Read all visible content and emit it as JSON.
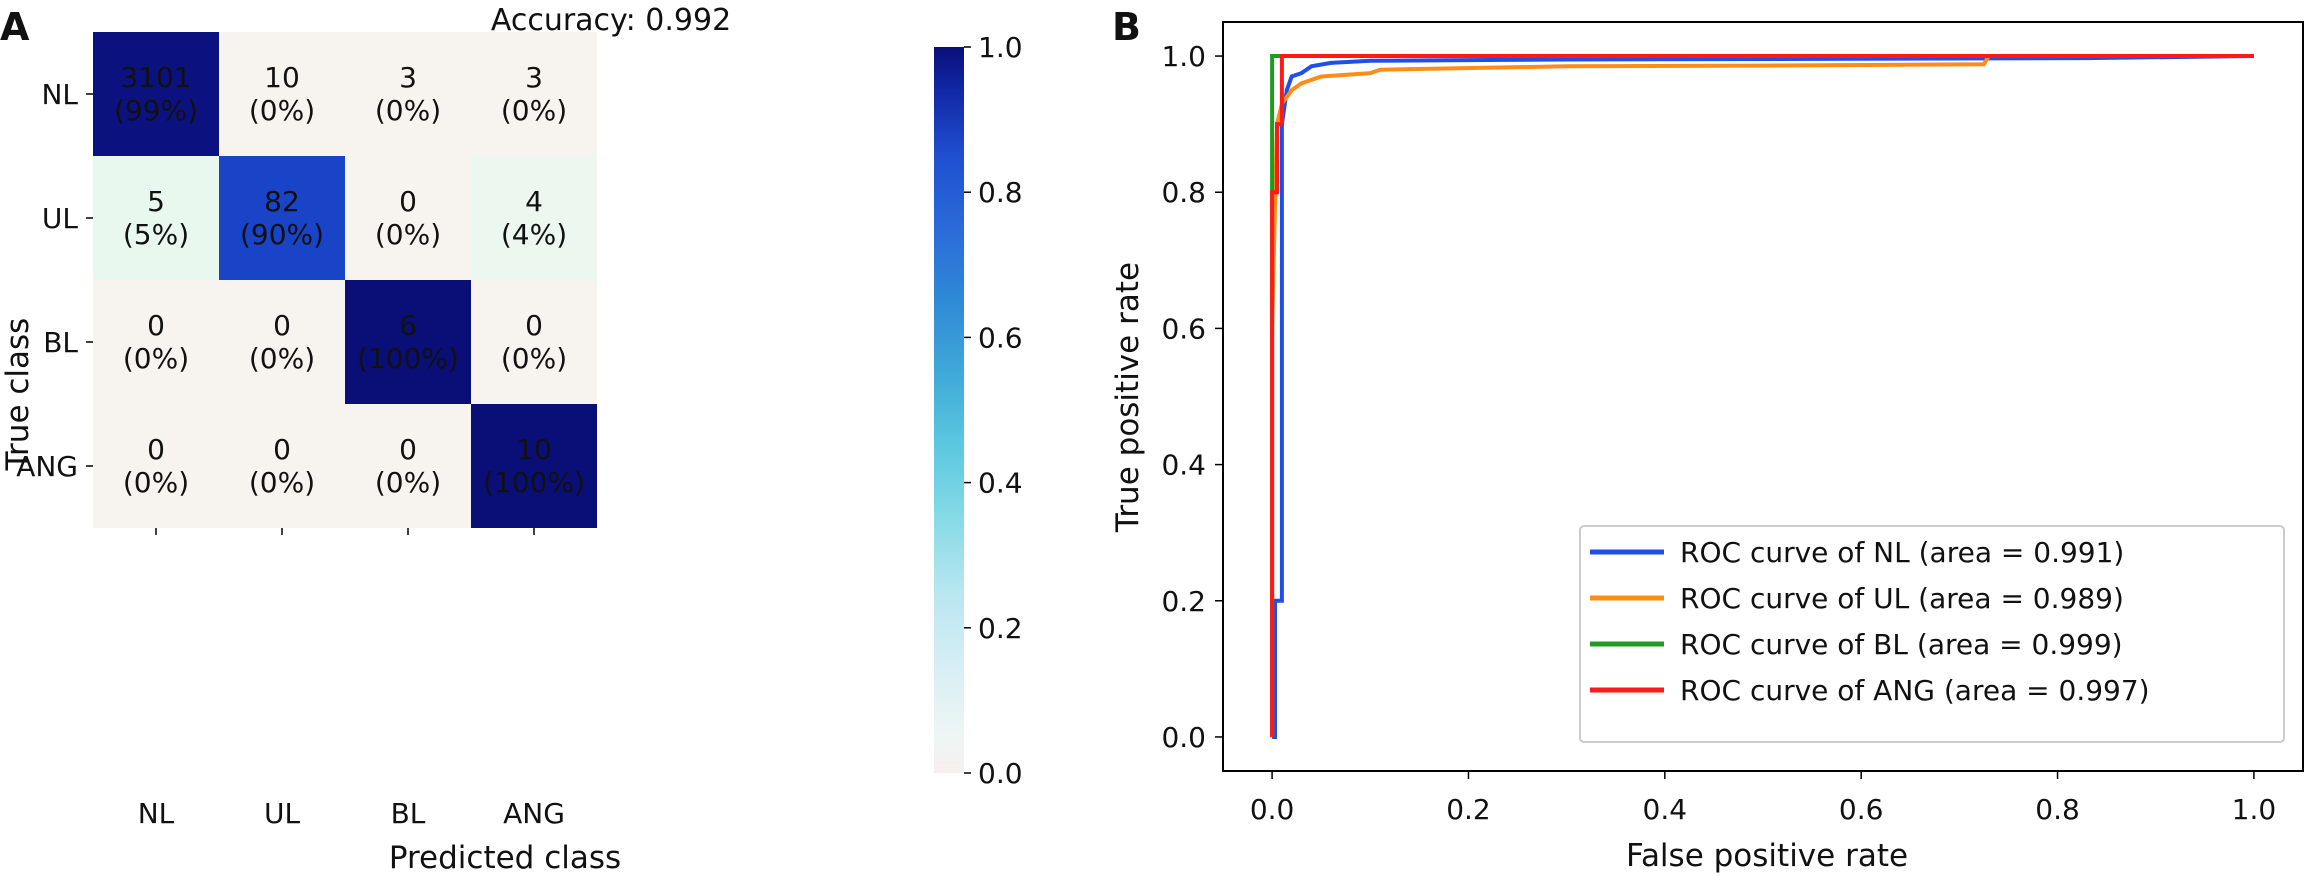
{
  "panels": {
    "a_label": "A",
    "b_label": "B"
  },
  "colors": {
    "cmap_low": "#f7f4f0",
    "cmap_high": "#0a0f78",
    "text_on_light": "#111111",
    "text_on_dark": "#ffffff",
    "roc": [
      "#1f4fe6",
      "#ff8c1a",
      "#1f9c1f",
      "#ff1a1a"
    ]
  },
  "chart_data": [
    {
      "type": "heatmap",
      "title": "Accuracy: 0.992",
      "xlabel": "Predicted class",
      "ylabel": "True class",
      "x_categories": [
        "NL",
        "UL",
        "BL",
        "ANG"
      ],
      "y_categories": [
        "NL",
        "UL",
        "BL",
        "ANG"
      ],
      "counts": [
        [
          3101,
          10,
          3,
          3
        ],
        [
          5,
          82,
          0,
          4
        ],
        [
          0,
          0,
          6,
          0
        ],
        [
          0,
          0,
          0,
          10
        ]
      ],
      "percent_labels": [
        [
          "(99%)",
          "(0%)",
          "(0%)",
          "(0%)"
        ],
        [
          "(5%)",
          "(90%)",
          "(0%)",
          "(4%)"
        ],
        [
          "(0%)",
          "(0%)",
          "(100%)",
          "(0%)"
        ],
        [
          "(0%)",
          "(0%)",
          "(0%)",
          "(100%)"
        ]
      ],
      "normalized": [
        [
          0.99,
          0.0,
          0.0,
          0.0
        ],
        [
          0.05,
          0.9,
          0.0,
          0.04
        ],
        [
          0.0,
          0.0,
          1.0,
          0.0
        ],
        [
          0.0,
          0.0,
          0.0,
          1.0
        ]
      ],
      "colorbar": {
        "range": [
          0.0,
          1.0
        ],
        "ticks": [
          "0.0",
          "0.2",
          "0.4",
          "0.6",
          "0.8",
          "1.0"
        ]
      }
    },
    {
      "type": "line",
      "title": "",
      "xlabel": "False positive rate",
      "ylabel": "True positive rate",
      "xlim": [
        -0.05,
        1.05
      ],
      "ylim": [
        -0.05,
        1.05
      ],
      "xticks": [
        "0.0",
        "0.2",
        "0.4",
        "0.6",
        "0.8",
        "1.0"
      ],
      "yticks": [
        "0.0",
        "0.2",
        "0.4",
        "0.6",
        "0.8",
        "1.0"
      ],
      "legend_position": "lower-right",
      "series": [
        {
          "name": "ROC curve of NL (area = 0.991)",
          "points": [
            [
              0,
              0
            ],
            [
              0.003,
              0
            ],
            [
              0.003,
              0.2
            ],
            [
              0.01,
              0.2
            ],
            [
              0.01,
              0.9
            ],
            [
              0.015,
              0.95
            ],
            [
              0.02,
              0.97
            ],
            [
              0.03,
              0.975
            ],
            [
              0.04,
              0.985
            ],
            [
              0.06,
              0.99
            ],
            [
              0.1,
              0.993
            ],
            [
              0.3,
              0.995
            ],
            [
              0.6,
              0.996
            ],
            [
              0.83,
              0.997
            ],
            [
              1,
              1
            ]
          ]
        },
        {
          "name": "ROC curve of UL (area = 0.989)",
          "points": [
            [
              0,
              0
            ],
            [
              0,
              0.6
            ],
            [
              0.005,
              0.9
            ],
            [
              0.01,
              0.93
            ],
            [
              0.02,
              0.95
            ],
            [
              0.03,
              0.96
            ],
            [
              0.05,
              0.97
            ],
            [
              0.1,
              0.975
            ],
            [
              0.11,
              0.98
            ],
            [
              0.3,
              0.985
            ],
            [
              0.5,
              0.986
            ],
            [
              0.725,
              0.988
            ],
            [
              0.73,
              1
            ],
            [
              1,
              1
            ]
          ]
        },
        {
          "name": "ROC curve of BL (area = 0.999)",
          "points": [
            [
              0,
              0
            ],
            [
              0,
              0.8
            ],
            [
              0,
              1
            ],
            [
              1,
              1
            ]
          ]
        },
        {
          "name": "ROC curve of ANG (area = 0.997)",
          "points": [
            [
              0,
              0
            ],
            [
              0,
              0.8
            ],
            [
              0.005,
              0.8
            ],
            [
              0.005,
              0.9
            ],
            [
              0.01,
              0.9
            ],
            [
              0.01,
              1
            ],
            [
              1,
              1
            ]
          ]
        }
      ]
    }
  ]
}
